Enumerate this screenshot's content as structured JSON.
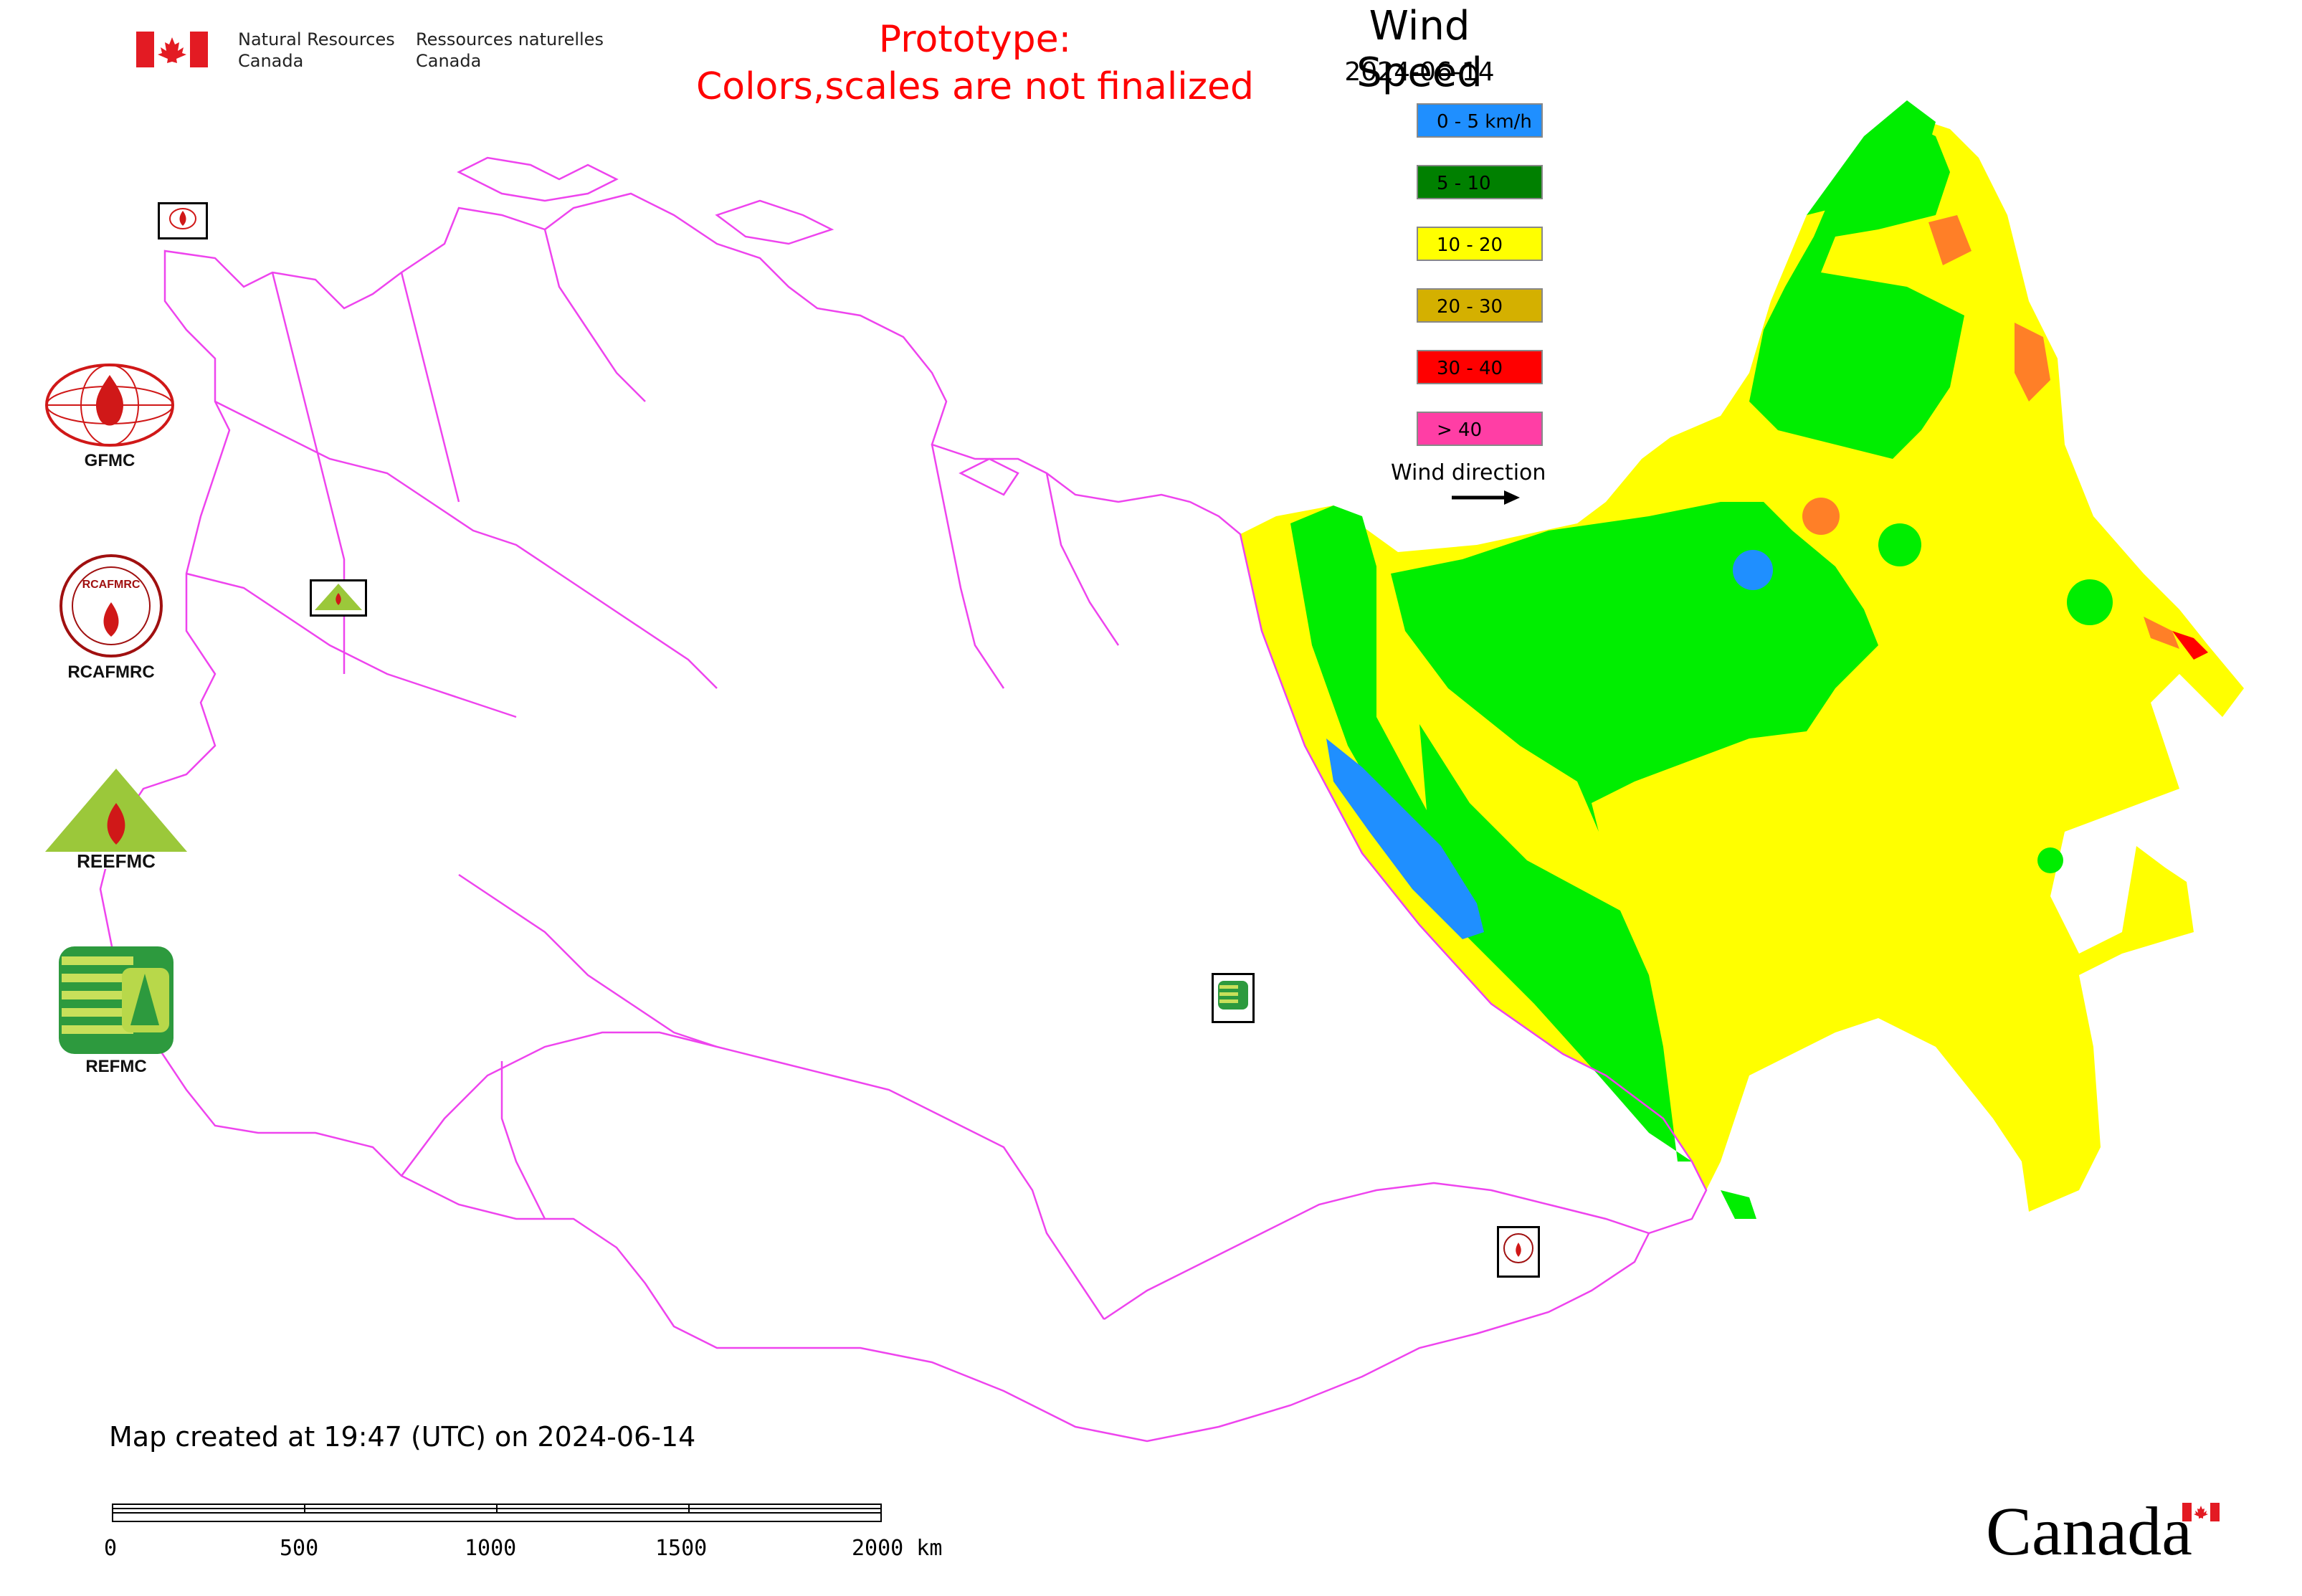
{
  "header": {
    "nrcan_en_line1": "Natural Resources",
    "nrcan_en_line2": "Canada",
    "nrcan_fr_line1": "Ressources naturelles",
    "nrcan_fr_line2": "Canada",
    "prototype_line1": "Prototype:",
    "prototype_line2": "Colors,scales are not finalized"
  },
  "title": "Wind Speed",
  "date": "2024-06-14",
  "legend": [
    {
      "label": "0 - 5 km/h",
      "color": "#1f8fff"
    },
    {
      "label": "5 - 10",
      "color": "#008000"
    },
    {
      "label": "10 - 20",
      "color": "#ffff00"
    },
    {
      "label": "20 - 30",
      "color": "#d4b000"
    },
    {
      "label": "30 - 40",
      "color": "#ff0000"
    },
    {
      "label": "> 40",
      "color": "#ff3ea5"
    }
  ],
  "wind_direction_label": "Wind direction",
  "colors": {
    "boundaries": "#ee44ee",
    "zone_blue": "#1f8fff",
    "zone_green": "#00ee00",
    "zone_yellow": "#ffff00",
    "zone_orange": "#ff7f27",
    "zone_red": "#ff0000"
  },
  "logos": [
    {
      "caption": "GFMC",
      "icon": "gfmc-logo"
    },
    {
      "caption": "RCAFMRC",
      "icon": "rcafmrc-logo"
    },
    {
      "caption": "REEFMC",
      "icon": "reefmc-logo"
    },
    {
      "caption": "REFMC",
      "icon": "refmc-logo"
    }
  ],
  "footer": {
    "created": "Map created at 19:47 (UTC) on 2024-06-14",
    "scale_labels": [
      "0",
      "500",
      "1000",
      "1500",
      "2000 km"
    ],
    "wordmark": "Canada"
  }
}
